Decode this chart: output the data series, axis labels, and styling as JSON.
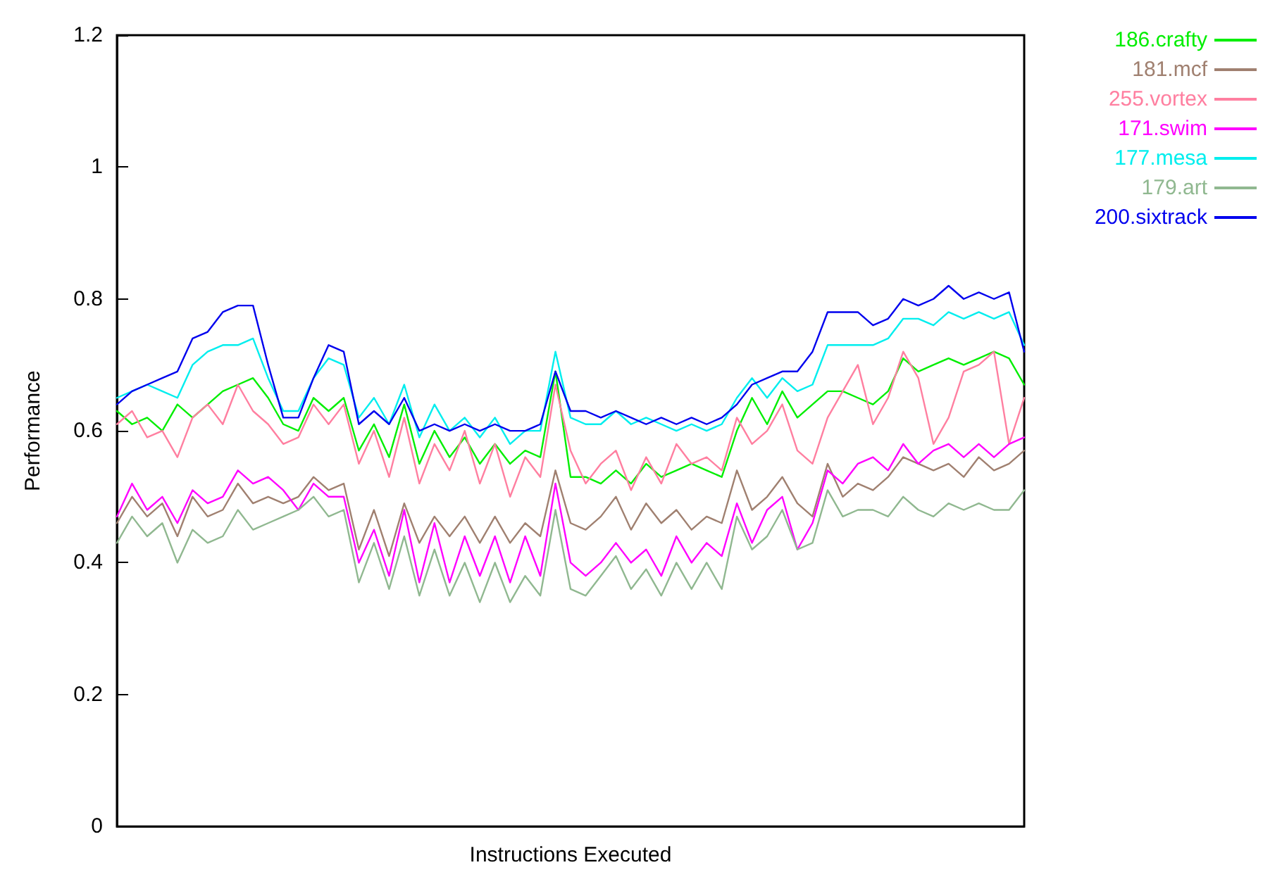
{
  "chart_data": {
    "type": "line",
    "xlabel": "Instructions Executed",
    "ylabel": "Performance",
    "categories": [
      null,
      null,
      null,
      null,
      null,
      null,
      null,
      null,
      null,
      null,
      null,
      null,
      null,
      null,
      null,
      null,
      null,
      null,
      null,
      null,
      null,
      null,
      null,
      null,
      null,
      null,
      null,
      null,
      null,
      null,
      null,
      null,
      null,
      null,
      null,
      null,
      null,
      null,
      null,
      null,
      null,
      null,
      null,
      null,
      null,
      null,
      null,
      null,
      null,
      null,
      null,
      null,
      null,
      null,
      null,
      null,
      null,
      null,
      null,
      null,
      null
    ],
    "ylim": [
      0,
      1.2
    ],
    "yticks": [
      0,
      0.2,
      0.4,
      0.6,
      0.8,
      1,
      1.2
    ],
    "grid": false,
    "legend": "top right",
    "marker": "none",
    "line_style": "solid",
    "series": [
      {
        "name": "186.crafty",
        "color": "#00ee00",
        "values": [
          0.63,
          0.61,
          0.62,
          0.6,
          0.64,
          0.62,
          0.64,
          0.66,
          0.67,
          0.68,
          0.65,
          0.61,
          0.6,
          0.65,
          0.63,
          0.65,
          0.57,
          0.61,
          0.56,
          0.64,
          0.55,
          0.6,
          0.56,
          0.59,
          0.55,
          0.58,
          0.55,
          0.57,
          0.56,
          0.69,
          0.53,
          0.53,
          0.52,
          0.54,
          0.52,
          0.55,
          0.53,
          0.54,
          0.55,
          0.54,
          0.53,
          0.6,
          0.65,
          0.61,
          0.66,
          0.62,
          0.64,
          0.66,
          0.66,
          0.65,
          0.64,
          0.66,
          0.71,
          0.69,
          0.7,
          0.71,
          0.7,
          0.71,
          0.72,
          0.71,
          0.67
        ]
      },
      {
        "name": "181.mcf",
        "color": "#a08070",
        "values": [
          0.46,
          0.5,
          0.47,
          0.49,
          0.44,
          0.5,
          0.47,
          0.48,
          0.52,
          0.49,
          0.5,
          0.49,
          0.5,
          0.53,
          0.51,
          0.52,
          0.42,
          0.48,
          0.41,
          0.49,
          0.43,
          0.47,
          0.44,
          0.47,
          0.43,
          0.47,
          0.43,
          0.46,
          0.44,
          0.54,
          0.46,
          0.45,
          0.47,
          0.5,
          0.45,
          0.49,
          0.46,
          0.48,
          0.45,
          0.47,
          0.46,
          0.54,
          0.48,
          0.5,
          0.53,
          0.49,
          0.47,
          0.55,
          0.5,
          0.52,
          0.51,
          0.53,
          0.56,
          0.55,
          0.54,
          0.55,
          0.53,
          0.56,
          0.54,
          0.55,
          0.57
        ]
      },
      {
        "name": "255.vortex",
        "color": "#ff7fa0",
        "values": [
          0.61,
          0.63,
          0.59,
          0.6,
          0.56,
          0.62,
          0.64,
          0.61,
          0.67,
          0.63,
          0.61,
          0.58,
          0.59,
          0.64,
          0.61,
          0.64,
          0.55,
          0.6,
          0.53,
          0.62,
          0.52,
          0.58,
          0.54,
          0.6,
          0.52,
          0.58,
          0.5,
          0.56,
          0.53,
          0.67,
          0.57,
          0.52,
          0.55,
          0.57,
          0.51,
          0.56,
          0.52,
          0.58,
          0.55,
          0.56,
          0.54,
          0.62,
          0.58,
          0.6,
          0.64,
          0.57,
          0.55,
          0.62,
          0.66,
          0.7,
          0.61,
          0.65,
          0.72,
          0.68,
          0.58,
          0.62,
          0.69,
          0.7,
          0.72,
          0.58,
          0.65
        ]
      },
      {
        "name": "171.swim",
        "color": "#ff00ff",
        "values": [
          0.47,
          0.52,
          0.48,
          0.5,
          0.46,
          0.51,
          0.49,
          0.5,
          0.54,
          0.52,
          0.53,
          0.51,
          0.48,
          0.52,
          0.5,
          0.5,
          0.4,
          0.45,
          0.38,
          0.48,
          0.37,
          0.46,
          0.37,
          0.44,
          0.38,
          0.44,
          0.37,
          0.44,
          0.38,
          0.52,
          0.4,
          0.38,
          0.4,
          0.43,
          0.4,
          0.42,
          0.38,
          0.44,
          0.4,
          0.43,
          0.41,
          0.49,
          0.43,
          0.48,
          0.5,
          0.42,
          0.46,
          0.54,
          0.52,
          0.55,
          0.56,
          0.54,
          0.58,
          0.55,
          0.57,
          0.58,
          0.56,
          0.58,
          0.56,
          0.58,
          0.59
        ]
      },
      {
        "name": "177.mesa",
        "color": "#00eeee",
        "values": [
          0.65,
          0.66,
          0.67,
          0.66,
          0.65,
          0.7,
          0.72,
          0.73,
          0.73,
          0.74,
          0.68,
          0.63,
          0.63,
          0.68,
          0.71,
          0.7,
          0.62,
          0.65,
          0.61,
          0.67,
          0.59,
          0.64,
          0.6,
          0.62,
          0.59,
          0.62,
          0.58,
          0.6,
          0.6,
          0.72,
          0.62,
          0.61,
          0.61,
          0.63,
          0.61,
          0.62,
          0.61,
          0.6,
          0.61,
          0.6,
          0.61,
          0.65,
          0.68,
          0.65,
          0.68,
          0.66,
          0.67,
          0.73,
          0.73,
          0.73,
          0.73,
          0.74,
          0.77,
          0.77,
          0.76,
          0.78,
          0.77,
          0.78,
          0.77,
          0.78,
          0.73
        ]
      },
      {
        "name": "179.art",
        "color": "#90b890",
        "values": [
          0.43,
          0.47,
          0.44,
          0.46,
          0.4,
          0.45,
          0.43,
          0.44,
          0.48,
          0.45,
          0.46,
          0.47,
          0.48,
          0.5,
          0.47,
          0.48,
          0.37,
          0.43,
          0.36,
          0.44,
          0.35,
          0.42,
          0.35,
          0.4,
          0.34,
          0.4,
          0.34,
          0.38,
          0.35,
          0.48,
          0.36,
          0.35,
          0.38,
          0.41,
          0.36,
          0.39,
          0.35,
          0.4,
          0.36,
          0.4,
          0.36,
          0.47,
          0.42,
          0.44,
          0.48,
          0.42,
          0.43,
          0.51,
          0.47,
          0.48,
          0.48,
          0.47,
          0.5,
          0.48,
          0.47,
          0.49,
          0.48,
          0.49,
          0.48,
          0.48,
          0.51
        ]
      },
      {
        "name": "200.sixtrack",
        "color": "#0000ee",
        "values": [
          0.64,
          0.66,
          0.67,
          0.68,
          0.69,
          0.74,
          0.75,
          0.78,
          0.79,
          0.79,
          0.7,
          0.62,
          0.62,
          0.68,
          0.73,
          0.72,
          0.61,
          0.63,
          0.61,
          0.65,
          0.6,
          0.61,
          0.6,
          0.61,
          0.6,
          0.61,
          0.6,
          0.6,
          0.61,
          0.69,
          0.63,
          0.63,
          0.62,
          0.63,
          0.62,
          0.61,
          0.62,
          0.61,
          0.62,
          0.61,
          0.62,
          0.64,
          0.67,
          0.68,
          0.69,
          0.69,
          0.72,
          0.78,
          0.78,
          0.78,
          0.76,
          0.77,
          0.8,
          0.79,
          0.8,
          0.82,
          0.8,
          0.81,
          0.8,
          0.81,
          0.72
        ]
      }
    ]
  }
}
